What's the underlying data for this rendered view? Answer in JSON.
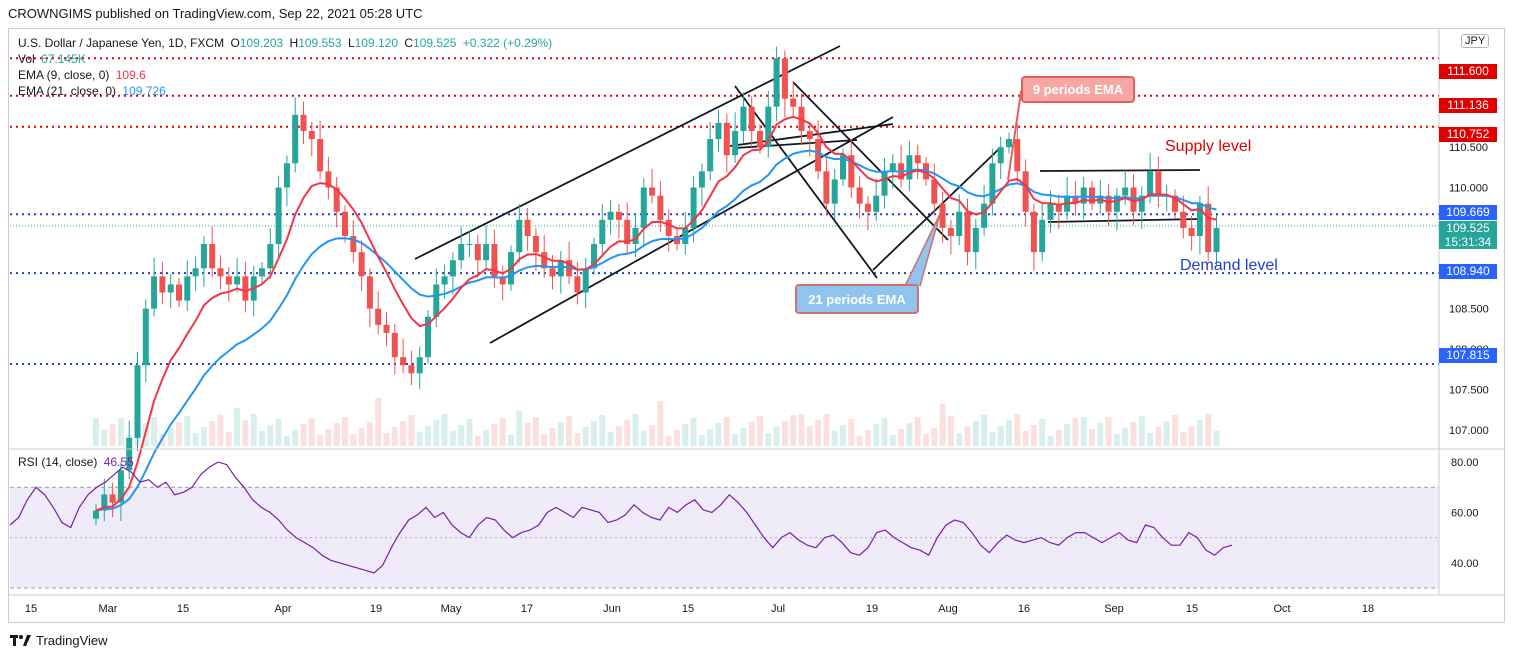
{
  "header": {
    "text": "CROWNGIMS published on TradingView.com, Sep 22, 2021 05:28 UTC"
  },
  "legend": {
    "symbol": "U.S. Dollar / Japanese Yen, 1D, FXCM",
    "o_label": "O",
    "o_value": "109.203",
    "h_label": "H",
    "h_value": "109.553",
    "l_label": "L",
    "l_value": "109.120",
    "c_label": "C",
    "c_value": "109.525",
    "change": "+0.322 (+0.29%)",
    "vol_label": "Vol",
    "vol_value": "67.145K",
    "ema9_label": "EMA (9, close, 0)",
    "ema9_value": "109.6",
    "ema21_label": "EMA (21, close, 0)",
    "ema21_value": "109.726",
    "rsi_label": "RSI (14, close)",
    "rsi_value": "46.55"
  },
  "annotations": {
    "ema9_callout": "9 periods EMA",
    "ema21_callout": "21 periods EMA",
    "supply": "Supply level",
    "demand": "Demand level"
  },
  "currency_badge": "JPY",
  "price_tags": {
    "p111600": "111.600",
    "p111136": "111.136",
    "p110752": "110.752",
    "p109669": "109.669",
    "last": "109.525",
    "countdown": "15:31:34",
    "p108940": "108.940",
    "p107815": "107.815"
  },
  "colors": {
    "up": "#26a69a",
    "down": "#ef5350",
    "ema9": "#f23645",
    "ema21": "#2196f3",
    "rsi": "#7b1fa2",
    "blue_level": "#1e3fd0",
    "red_level": "#e00000"
  },
  "watermark": {
    "name": "TradingView"
  },
  "chart_data": [
    {
      "type": "candlestick",
      "title": "U.S. Dollar / Japanese Yen, 1D, FXCM",
      "y_axis_ticks": [
        "111.000",
        "110.500",
        "110.000",
        "109.500",
        "108.500",
        "108.000",
        "107.500",
        "107.000"
      ],
      "x_axis_ticks": [
        "15",
        "Mar",
        "15",
        "Apr",
        "19",
        "May",
        "17",
        "Jun",
        "15",
        "Jul",
        "19",
        "Aug",
        "16",
        "Sep",
        "15",
        "Oct",
        "18"
      ],
      "ylim": [
        106.8,
        111.95
      ],
      "last_close": 109.525,
      "horizontal_levels": [
        {
          "value": 111.6,
          "style": "dotted",
          "color": "red"
        },
        {
          "value": 111.136,
          "style": "dotted",
          "color": "red"
        },
        {
          "value": 110.752,
          "style": "dotted",
          "color": "red"
        },
        {
          "value": 109.669,
          "style": "dotted",
          "color": "blue"
        },
        {
          "value": 108.94,
          "style": "dotted",
          "color": "blue"
        },
        {
          "value": 107.815,
          "style": "dotted",
          "color": "blue"
        }
      ],
      "closes_approx": [
        106.0,
        106.2,
        106.1,
        106.5,
        106.9,
        107.8,
        108.5,
        108.9,
        108.7,
        108.8,
        108.6,
        108.9,
        109.0,
        109.3,
        109.0,
        108.9,
        108.8,
        108.9,
        108.6,
        108.9,
        109.0,
        109.3,
        110.0,
        110.3,
        110.9,
        110.7,
        110.6,
        110.2,
        110.0,
        109.7,
        109.4,
        109.2,
        108.9,
        108.5,
        108.3,
        108.2,
        107.9,
        107.8,
        107.7,
        107.9,
        108.4,
        108.8,
        108.9,
        109.1,
        109.3,
        109.3,
        109.1,
        109.3,
        108.9,
        108.8,
        109.2,
        109.6,
        109.4,
        109.2,
        109.0,
        108.9,
        109.1,
        108.9,
        108.7,
        109.0,
        109.3,
        109.6,
        109.7,
        109.6,
        109.3,
        109.5,
        110.0,
        109.9,
        109.6,
        109.4,
        109.3,
        109.5,
        110.0,
        110.2,
        110.6,
        110.8,
        110.4,
        110.7,
        111.0,
        110.7,
        110.5,
        111.0,
        111.6,
        111.1,
        111.0,
        110.7,
        110.6,
        110.2,
        109.8,
        110.1,
        110.4,
        110.0,
        109.8,
        109.7,
        109.9,
        110.2,
        110.3,
        110.1,
        110.4,
        110.3,
        110.1,
        109.8,
        109.5,
        109.4,
        109.7,
        109.2,
        109.5,
        109.8,
        110.3,
        110.5,
        110.6,
        110.2,
        109.7,
        109.2,
        109.6,
        109.8,
        109.7,
        109.9,
        109.8,
        110.0,
        109.8,
        109.9,
        109.7,
        109.9,
        110.0,
        109.7,
        109.9,
        110.2,
        109.9,
        109.9,
        109.7,
        109.5,
        109.4,
        109.8,
        109.2,
        109.5
      ],
      "series": [
        {
          "name": "EMA (9, close, 0)",
          "last_value": 109.6
        },
        {
          "name": "EMA (21, close, 0)",
          "last_value": 109.726
        }
      ]
    },
    {
      "type": "line",
      "title": "RSI (14, close)",
      "y_axis_ticks": [
        "80.00",
        "60.00",
        "40.00"
      ],
      "ylim": [
        28,
        84
      ],
      "band": [
        30,
        70
      ],
      "last_value": 46.55,
      "values_approx": [
        55,
        58,
        65,
        70,
        67,
        62,
        56,
        54,
        62,
        67,
        70,
        72,
        75,
        78,
        76,
        72,
        73,
        70,
        72,
        67,
        68,
        70,
        75,
        78,
        80,
        79,
        74,
        70,
        65,
        62,
        60,
        57,
        53,
        50,
        48,
        46,
        43,
        41,
        40,
        39,
        38,
        37,
        36,
        39,
        46,
        52,
        57,
        59,
        62,
        58,
        60,
        55,
        52,
        50,
        55,
        58,
        57,
        53,
        50,
        52,
        53,
        55,
        60,
        62,
        60,
        58,
        62,
        61,
        60,
        56,
        57,
        59,
        63,
        60,
        58,
        57,
        62,
        60,
        63,
        65,
        61,
        60,
        63,
        67,
        64,
        60,
        55,
        50,
        46,
        50,
        52,
        49,
        47,
        46,
        50,
        51,
        48,
        44,
        43,
        46,
        52,
        53,
        50,
        48,
        46,
        45,
        43,
        50,
        55,
        57,
        56,
        52,
        47,
        44,
        48,
        51,
        49,
        48,
        49,
        50,
        48,
        47,
        50,
        52,
        52,
        50,
        48,
        50,
        52,
        49,
        48,
        55,
        54,
        50,
        47,
        47,
        52,
        50,
        45,
        43,
        46,
        47
      ]
    }
  ]
}
